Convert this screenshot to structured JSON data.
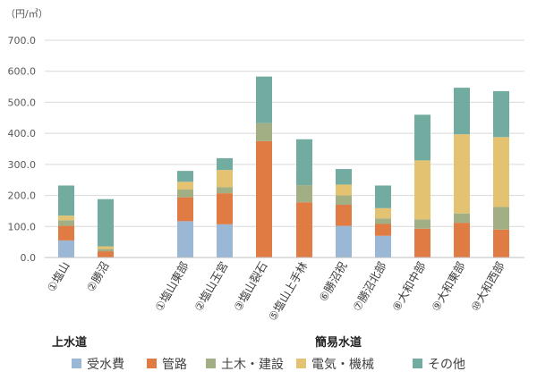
{
  "chart_data": {
    "type": "bar",
    "stacked": true,
    "unit_label": "（円/㎥）",
    "ylim": [
      0,
      700
    ],
    "yticks": [
      "0.0",
      "100.0",
      "200.0",
      "300.0",
      "400.0",
      "500.0",
      "600.0",
      "700.0"
    ],
    "categories": [
      "①塩山",
      "②勝沼",
      "①塩山東部",
      "②塩山玉宮",
      "③塩山裂石",
      "⑤塩山上手林",
      "⑥勝沼祝",
      "⑦勝沼北部",
      "⑧大和中部",
      "⑨大和東部",
      "⑩大和西部"
    ],
    "group_labels": [
      "上水道",
      "簡易水道"
    ],
    "groups": [
      {
        "label_index": 0,
        "categories": [
          0,
          1
        ]
      },
      {
        "label_index": 1,
        "categories": [
          2,
          3,
          4,
          5,
          6,
          7,
          8,
          9,
          10
        ]
      }
    ],
    "series": [
      {
        "name": "受水費",
        "color": "#9ab7d6",
        "values": [
          55,
          0,
          117,
          107,
          0,
          0,
          102,
          70,
          0,
          0,
          0
        ]
      },
      {
        "name": "管路",
        "color": "#e07b44",
        "values": [
          47,
          20,
          77,
          100,
          375,
          178,
          68,
          38,
          93,
          112,
          90
        ]
      },
      {
        "name": "土木・建設",
        "color": "#a2ae84",
        "values": [
          18,
          8,
          25,
          20,
          58,
          55,
          30,
          18,
          30,
          30,
          73
        ]
      },
      {
        "name": "電気・機械",
        "color": "#e3c271",
        "values": [
          15,
          8,
          25,
          55,
          0,
          0,
          35,
          33,
          190,
          255,
          225
        ]
      },
      {
        "name": "その他",
        "color": "#72ab9f",
        "values": [
          97,
          152,
          35,
          38,
          150,
          148,
          50,
          73,
          147,
          150,
          148
        ]
      }
    ]
  }
}
